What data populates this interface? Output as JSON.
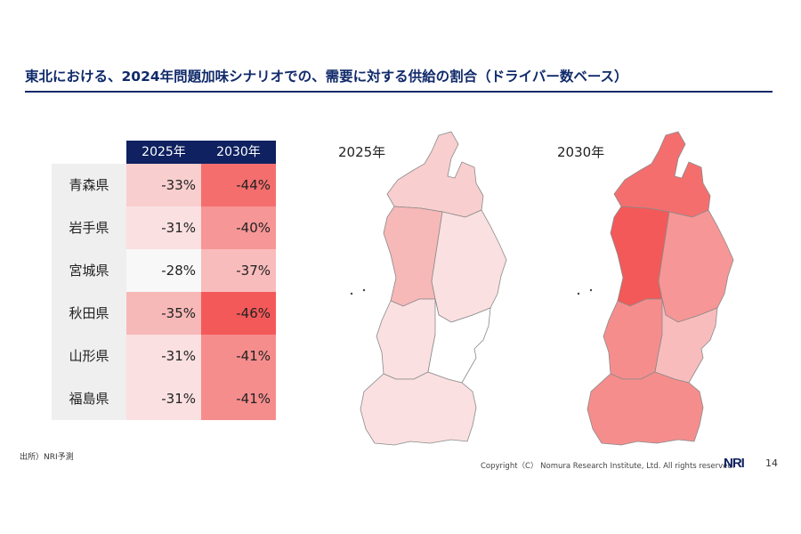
{
  "title": "東北における、2024年問題加味シナリオでの、需要に対する供給の割合（ドライバー数ベース）",
  "table": {
    "headers": [
      "2025年",
      "2030年"
    ],
    "rows": [
      {
        "pref": "青森県",
        "v2025": "-33%",
        "v2030": "-44%",
        "c2025": "#f8cece",
        "c2030": "#f56e6e"
      },
      {
        "pref": "岩手県",
        "v2025": "-31%",
        "v2030": "-40%",
        "c2025": "#fbe0e1",
        "c2030": "#f79696"
      },
      {
        "pref": "宮城県",
        "v2025": "-28%",
        "v2030": "-37%",
        "c2025": "#f8f8f8",
        "c2030": "#f9bcbc"
      },
      {
        "pref": "秋田県",
        "v2025": "-35%",
        "v2030": "-46%",
        "c2025": "#f7b8b8",
        "c2030": "#f45959"
      },
      {
        "pref": "山形県",
        "v2025": "-31%",
        "v2030": "-41%",
        "c2025": "#fbe0e1",
        "c2030": "#f68d8d"
      },
      {
        "pref": "福島県",
        "v2025": "-31%",
        "v2030": "-41%",
        "c2025": "#fbe0e1",
        "c2030": "#f68d8d"
      }
    ]
  },
  "maps": {
    "label_2025": "2025年",
    "label_2030": "2030年",
    "colors_2025": {
      "aomori": "#f8cece",
      "iwate": "#fbe0e1",
      "miyagi": "#ffffff",
      "akita": "#f7b8b8",
      "yamagata": "#fbe0e1",
      "fukushima": "#fbe0e1"
    },
    "colors_2030": {
      "aomori": "#f56e6e",
      "iwate": "#f79696",
      "miyagi": "#f9bcbc",
      "akita": "#f45959",
      "yamagata": "#f68d8d",
      "fukushima": "#f68d8d"
    }
  },
  "footer": {
    "source": "出所）NRI予測",
    "copyright": "Copyright（C） Nomura Research Institute, Ltd. All rights reserved.",
    "logo": "NRI",
    "page": "14"
  }
}
